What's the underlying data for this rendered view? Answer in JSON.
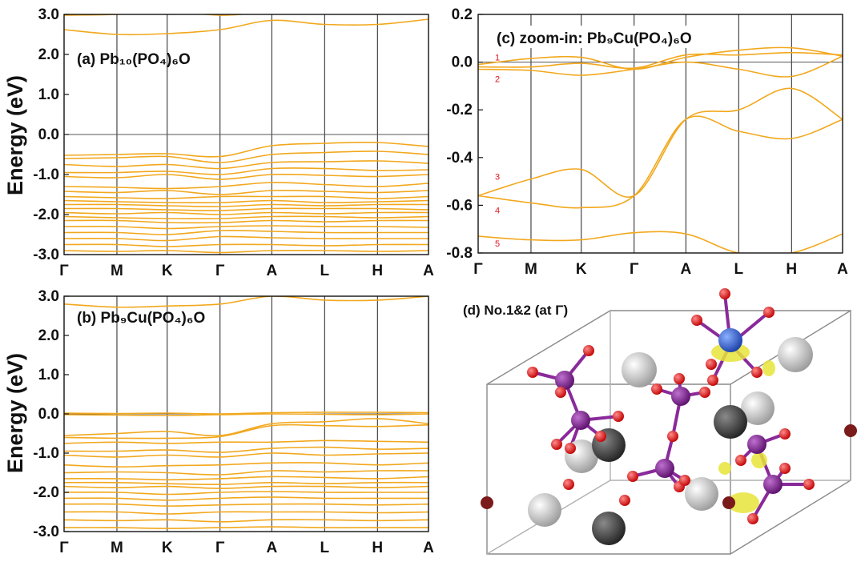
{
  "figure": {
    "colors": {
      "band": "#f2a81d",
      "axis": "#111111",
      "vline": "#222222",
      "zero": "#555555",
      "label_red": "#e0141e",
      "ball_grey": "#cfcfcf",
      "ball_dark": "#3c3c3c",
      "ball_red": "#e01818",
      "ball_purple": "#7a1f86",
      "ball_blue": "#2a5fd8",
      "isosurface": "#e8e43a"
    }
  },
  "chart_data": [
    {
      "id": "a",
      "type": "line",
      "title": "(a) Pb₁₀(PO₄)₆O",
      "ylabel": "Energy (eV)",
      "ylim": [
        -3.0,
        3.0
      ],
      "yticks": [
        3.0,
        2.0,
        1.0,
        0.0,
        -1.0,
        -2.0,
        -3.0
      ],
      "ytick_labels": [
        "3.0",
        "2.0",
        "1.0",
        "0.0",
        "-1.0",
        "-2.0",
        "-3.0"
      ],
      "kpoints": [
        "Γ",
        "M",
        "K",
        "Γ",
        "A",
        "L",
        "H",
        "A"
      ],
      "fermi_level": 0.0,
      "series": [
        {
          "name": "c1",
          "values": [
            2.98,
            3.0,
            3.08,
            2.98,
            3.05,
            3.05,
            3.05,
            3.05
          ]
        },
        {
          "name": "c2",
          "values": [
            2.62,
            2.5,
            2.52,
            2.62,
            2.85,
            2.75,
            2.75,
            2.88
          ]
        },
        {
          "name": "v1",
          "values": [
            -0.52,
            -0.5,
            -0.48,
            -0.55,
            -0.28,
            -0.22,
            -0.2,
            -0.3
          ]
        },
        {
          "name": "v2",
          "values": [
            -0.6,
            -0.58,
            -0.55,
            -0.7,
            -0.5,
            -0.45,
            -0.42,
            -0.5
          ]
        },
        {
          "name": "v3",
          "values": [
            -0.75,
            -0.8,
            -0.75,
            -0.85,
            -0.7,
            -0.68,
            -0.66,
            -0.72
          ]
        },
        {
          "name": "v4",
          "values": [
            -0.95,
            -0.95,
            -0.92,
            -1.0,
            -0.85,
            -0.85,
            -0.9,
            -0.88
          ]
        },
        {
          "name": "v5",
          "values": [
            -1.05,
            -1.08,
            -1.0,
            -1.12,
            -1.0,
            -1.02,
            -1.05,
            -1.0
          ]
        },
        {
          "name": "v6",
          "values": [
            -1.3,
            -1.32,
            -1.35,
            -1.3,
            -1.2,
            -1.25,
            -1.3,
            -1.22
          ]
        },
        {
          "name": "v7",
          "values": [
            -1.42,
            -1.45,
            -1.4,
            -1.5,
            -1.4,
            -1.42,
            -1.45,
            -1.4
          ]
        },
        {
          "name": "v8",
          "values": [
            -1.55,
            -1.58,
            -1.6,
            -1.55,
            -1.55,
            -1.55,
            -1.6,
            -1.55
          ]
        },
        {
          "name": "v9",
          "values": [
            -1.65,
            -1.68,
            -1.7,
            -1.7,
            -1.65,
            -1.7,
            -1.68,
            -1.65
          ]
        },
        {
          "name": "v10",
          "values": [
            -1.75,
            -1.75,
            -1.78,
            -1.8,
            -1.75,
            -1.78,
            -1.75,
            -1.75
          ]
        },
        {
          "name": "v11",
          "values": [
            -1.85,
            -1.85,
            -1.88,
            -1.9,
            -1.85,
            -1.85,
            -1.85,
            -1.88
          ]
        },
        {
          "name": "v12",
          "values": [
            -1.95,
            -1.98,
            -1.95,
            -2.0,
            -1.95,
            -1.98,
            -1.95,
            -1.95
          ]
        },
        {
          "name": "v13",
          "values": [
            -2.05,
            -2.08,
            -2.1,
            -2.1,
            -2.05,
            -2.05,
            -2.08,
            -2.05
          ]
        },
        {
          "name": "v14",
          "values": [
            -2.15,
            -2.15,
            -2.2,
            -2.2,
            -2.15,
            -2.18,
            -2.15,
            -2.15
          ]
        },
        {
          "name": "v15",
          "values": [
            -2.3,
            -2.3,
            -2.35,
            -2.3,
            -2.28,
            -2.3,
            -2.3,
            -2.32
          ]
        },
        {
          "name": "v16",
          "values": [
            -2.45,
            -2.45,
            -2.5,
            -2.4,
            -2.42,
            -2.45,
            -2.45,
            -2.45
          ]
        },
        {
          "name": "v17",
          "values": [
            -2.6,
            -2.6,
            -2.65,
            -2.55,
            -2.58,
            -2.6,
            -2.6,
            -2.6
          ]
        },
        {
          "name": "v18",
          "values": [
            -2.75,
            -2.75,
            -2.8,
            -2.75,
            -2.75,
            -2.78,
            -2.75,
            -2.75
          ]
        },
        {
          "name": "v19",
          "values": [
            -2.9,
            -2.92,
            -2.9,
            -2.95,
            -2.9,
            -2.9,
            -2.92,
            -2.9
          ]
        }
      ]
    },
    {
      "id": "b",
      "type": "line",
      "title": "(b) Pb₉Cu(PO₄)₆O",
      "ylabel": "Energy (eV)",
      "ylim": [
        -3.0,
        3.0
      ],
      "yticks": [
        3.0,
        2.0,
        1.0,
        0.0,
        -1.0,
        -2.0,
        -3.0
      ],
      "ytick_labels": [
        "3.0",
        "2.0",
        "1.0",
        "0.0",
        "-1.0",
        "-2.0",
        "-3.0"
      ],
      "kpoints": [
        "Γ",
        "M",
        "K",
        "Γ",
        "A",
        "L",
        "H",
        "A"
      ],
      "fermi_level": 0.0,
      "series": [
        {
          "name": "c1",
          "values": [
            2.8,
            2.72,
            2.75,
            2.8,
            3.0,
            2.9,
            2.9,
            3.0
          ]
        },
        {
          "name": "f1",
          "values": [
            0.02,
            0.01,
            0.02,
            0.0,
            0.03,
            0.04,
            0.04,
            0.03
          ]
        },
        {
          "name": "f2",
          "values": [
            -0.02,
            -0.03,
            -0.04,
            -0.02,
            0.0,
            -0.01,
            -0.02,
            0.0
          ]
        },
        {
          "name": "v1",
          "values": [
            -0.55,
            -0.5,
            -0.45,
            -0.55,
            -0.25,
            -0.2,
            -0.12,
            -0.25
          ]
        },
        {
          "name": "v2",
          "values": [
            -0.6,
            -0.62,
            -0.62,
            -0.58,
            -0.3,
            -0.3,
            -0.32,
            -0.28
          ]
        },
        {
          "name": "v3",
          "values": [
            -0.75,
            -0.72,
            -0.75,
            -0.72,
            -0.72,
            -0.68,
            -0.7,
            -0.72
          ]
        },
        {
          "name": "v4",
          "values": [
            -0.95,
            -0.95,
            -0.92,
            -0.98,
            -0.88,
            -0.85,
            -0.9,
            -0.88
          ]
        },
        {
          "name": "v5",
          "values": [
            -1.05,
            -1.1,
            -1.05,
            -1.1,
            -1.0,
            -1.05,
            -1.02,
            -1.0
          ]
        },
        {
          "name": "v6",
          "values": [
            -1.3,
            -1.35,
            -1.32,
            -1.3,
            -1.25,
            -1.25,
            -1.3,
            -1.25
          ]
        },
        {
          "name": "v7",
          "values": [
            -1.5,
            -1.48,
            -1.5,
            -1.55,
            -1.45,
            -1.48,
            -1.45,
            -1.45
          ]
        },
        {
          "name": "v8",
          "values": [
            -1.65,
            -1.65,
            -1.68,
            -1.65,
            -1.6,
            -1.62,
            -1.65,
            -1.6
          ]
        },
        {
          "name": "v9",
          "values": [
            -1.75,
            -1.75,
            -1.78,
            -1.8,
            -1.75,
            -1.78,
            -1.75,
            -1.75
          ]
        },
        {
          "name": "v10",
          "values": [
            -1.85,
            -1.88,
            -1.85,
            -1.9,
            -1.85,
            -1.85,
            -1.88,
            -1.85
          ]
        },
        {
          "name": "v11",
          "values": [
            -2.0,
            -2.0,
            -2.05,
            -2.0,
            -1.98,
            -2.0,
            -2.0,
            -2.0
          ]
        },
        {
          "name": "v12",
          "values": [
            -2.15,
            -2.15,
            -2.2,
            -2.15,
            -2.12,
            -2.15,
            -2.15,
            -2.15
          ]
        },
        {
          "name": "v13",
          "values": [
            -2.3,
            -2.3,
            -2.35,
            -2.32,
            -2.3,
            -2.3,
            -2.32,
            -2.3
          ]
        },
        {
          "name": "v14",
          "values": [
            -2.5,
            -2.5,
            -2.55,
            -2.5,
            -2.5,
            -2.5,
            -2.52,
            -2.5
          ]
        },
        {
          "name": "v15",
          "values": [
            -2.7,
            -2.72,
            -2.7,
            -2.75,
            -2.7,
            -2.7,
            -2.72,
            -2.7
          ]
        },
        {
          "name": "v16",
          "values": [
            -2.9,
            -2.9,
            -2.92,
            -2.9,
            -2.88,
            -2.9,
            -2.9,
            -2.9
          ]
        }
      ]
    },
    {
      "id": "c",
      "type": "line",
      "title": "(c) zoom-in: Pb₉Cu(PO₄)₆O",
      "ylabel": "",
      "ylim": [
        -0.8,
        0.2
      ],
      "yticks": [
        0.2,
        0.0,
        -0.2,
        -0.4,
        -0.6,
        -0.8
      ],
      "ytick_labels": [
        "0.2",
        "0.0",
        "-0.2",
        "-0.4",
        "-0.6",
        "-0.8"
      ],
      "kpoints": [
        "Γ",
        "M",
        "K",
        "Γ",
        "A",
        "L",
        "H",
        "A"
      ],
      "fermi_level": 0.0,
      "band_labels": [
        "1",
        "2",
        "3",
        "4",
        "5"
      ],
      "band_label_energies": [
        0.02,
        -0.07,
        -0.48,
        -0.62,
        -0.76
      ],
      "series": [
        {
          "name": "band1",
          "values": [
            -0.01,
            0.015,
            0.02,
            -0.03,
            0.02,
            0.05,
            0.06,
            0.025
          ]
        },
        {
          "name": "band2",
          "values": [
            -0.02,
            -0.02,
            -0.005,
            -0.025,
            0.03,
            0.03,
            0.04,
            0.03
          ]
        },
        {
          "name": "band2b",
          "values": [
            -0.03,
            -0.035,
            -0.055,
            -0.03,
            0.0,
            -0.03,
            -0.06,
            0.025
          ]
        },
        {
          "name": "band3",
          "values": [
            -0.56,
            -0.49,
            -0.45,
            -0.56,
            -0.24,
            -0.2,
            -0.11,
            -0.24
          ]
        },
        {
          "name": "band4",
          "values": [
            -0.56,
            -0.59,
            -0.61,
            -0.56,
            -0.24,
            -0.29,
            -0.32,
            -0.24
          ]
        },
        {
          "name": "band5",
          "values": [
            -0.73,
            -0.745,
            -0.745,
            -0.715,
            -0.72,
            -0.8,
            -0.8,
            -0.72
          ]
        }
      ]
    }
  ],
  "panel_d": {
    "title": "(d) No.1&2 (at Γ)",
    "description_atoms": {
      "grey": "Pb",
      "dark": "Pb",
      "red": "O",
      "purple": "P",
      "blue": "Cu"
    }
  }
}
